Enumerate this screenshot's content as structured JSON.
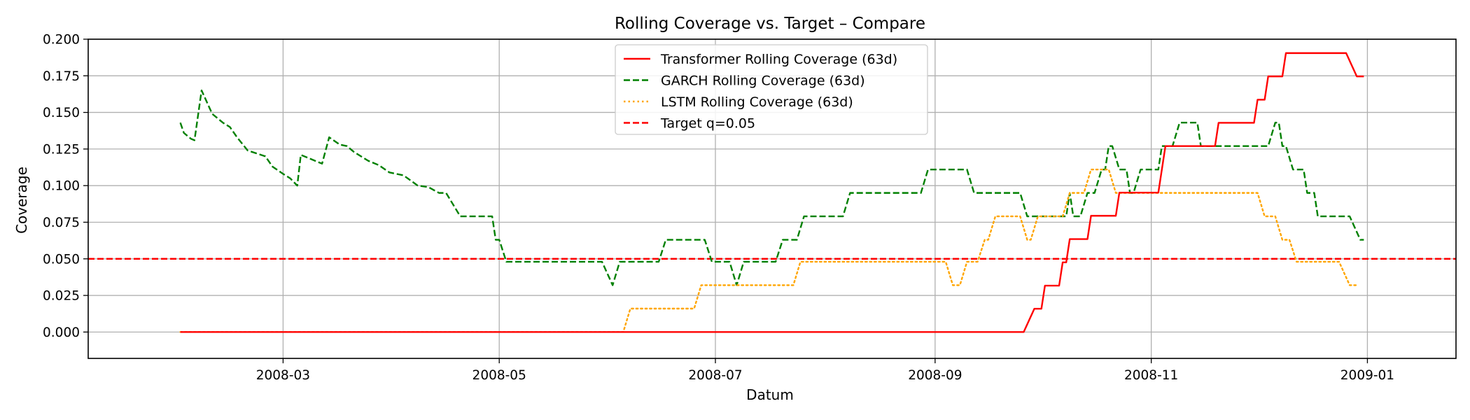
{
  "chart_data": {
    "type": "line",
    "title": "Rolling Coverage vs. Target – Compare",
    "xlabel": "Datum",
    "ylabel": "Coverage",
    "x_range": [
      "2008-01-06",
      "2009-01-26"
    ],
    "ylim": [
      -0.018,
      0.2
    ],
    "x_ticks": [
      "2008-03",
      "2008-05",
      "2008-07",
      "2008-09",
      "2008-11",
      "2009-01"
    ],
    "y_ticks": [
      "0.000",
      "0.025",
      "0.050",
      "0.075",
      "0.100",
      "0.125",
      "0.150",
      "0.175",
      "0.200"
    ],
    "grid": true,
    "legend_position": "top-center",
    "series": [
      {
        "name": "Transformer Rolling Coverage (63d)",
        "color": "#ff0000",
        "style": "solid",
        "points": [
          [
            "2008-02-01",
            0.0
          ],
          [
            "2008-09-26",
            0.0
          ],
          [
            "2008-09-29",
            0.0159
          ],
          [
            "2008-10-01",
            0.0159
          ],
          [
            "2008-10-02",
            0.0317
          ],
          [
            "2008-10-06",
            0.0317
          ],
          [
            "2008-10-07",
            0.0476
          ],
          [
            "2008-10-08",
            0.0476
          ],
          [
            "2008-10-09",
            0.0635
          ],
          [
            "2008-10-14",
            0.0635
          ],
          [
            "2008-10-15",
            0.0794
          ],
          [
            "2008-10-22",
            0.0794
          ],
          [
            "2008-10-23",
            0.0952
          ],
          [
            "2008-11-03",
            0.0952
          ],
          [
            "2008-11-05",
            0.127
          ],
          [
            "2008-11-19",
            0.127
          ],
          [
            "2008-11-20",
            0.1429
          ],
          [
            "2008-11-30",
            0.1429
          ],
          [
            "2008-12-01",
            0.1587
          ],
          [
            "2008-12-03",
            0.1587
          ],
          [
            "2008-12-04",
            0.1746
          ],
          [
            "2008-12-08",
            0.1746
          ],
          [
            "2008-12-09",
            0.1905
          ],
          [
            "2008-12-26",
            0.1905
          ],
          [
            "2008-12-29",
            0.1746
          ],
          [
            "2008-12-31",
            0.1746
          ]
        ]
      },
      {
        "name": "GARCH Rolling Coverage (63d)",
        "color": "#008000",
        "style": "dashed",
        "points": [
          [
            "2008-02-01",
            0.143
          ],
          [
            "2008-02-02",
            0.136
          ],
          [
            "2008-02-04",
            0.132
          ],
          [
            "2008-02-05",
            0.131
          ],
          [
            "2008-02-07",
            0.165
          ],
          [
            "2008-02-10",
            0.149
          ],
          [
            "2008-02-13",
            0.143
          ],
          [
            "2008-02-15",
            0.14
          ],
          [
            "2008-02-17",
            0.133
          ],
          [
            "2008-02-20",
            0.124
          ],
          [
            "2008-02-25",
            0.12
          ],
          [
            "2008-02-27",
            0.113
          ],
          [
            "2008-03-01",
            0.108
          ],
          [
            "2008-03-03",
            0.105
          ],
          [
            "2008-03-05",
            0.1
          ],
          [
            "2008-03-06",
            0.121
          ],
          [
            "2008-03-08",
            0.119
          ],
          [
            "2008-03-11",
            0.116
          ],
          [
            "2008-03-12",
            0.115
          ],
          [
            "2008-03-14",
            0.133
          ],
          [
            "2008-03-17",
            0.128
          ],
          [
            "2008-03-19",
            0.127
          ],
          [
            "2008-03-21",
            0.123
          ],
          [
            "2008-03-25",
            0.117
          ],
          [
            "2008-03-28",
            0.114
          ],
          [
            "2008-03-31",
            0.109
          ],
          [
            "2008-04-04",
            0.107
          ],
          [
            "2008-04-08",
            0.1
          ],
          [
            "2008-04-11",
            0.099
          ],
          [
            "2008-04-14",
            0.095
          ],
          [
            "2008-04-16",
            0.095
          ],
          [
            "2008-04-20",
            0.079
          ],
          [
            "2008-04-29",
            0.079
          ],
          [
            "2008-04-30",
            0.063
          ],
          [
            "2008-05-01",
            0.063
          ],
          [
            "2008-05-03",
            0.048
          ],
          [
            "2008-05-06",
            0.048
          ],
          [
            "2008-05-30",
            0.048
          ],
          [
            "2008-06-02",
            0.032
          ],
          [
            "2008-06-04",
            0.048
          ],
          [
            "2008-06-15",
            0.048
          ],
          [
            "2008-06-17",
            0.063
          ],
          [
            "2008-06-28",
            0.063
          ],
          [
            "2008-06-30",
            0.048
          ],
          [
            "2008-07-05",
            0.048
          ],
          [
            "2008-07-07",
            0.032
          ],
          [
            "2008-07-09",
            0.048
          ],
          [
            "2008-07-18",
            0.048
          ],
          [
            "2008-07-20",
            0.063
          ],
          [
            "2008-07-24",
            0.063
          ],
          [
            "2008-07-26",
            0.079
          ],
          [
            "2008-08-06",
            0.079
          ],
          [
            "2008-08-08",
            0.095
          ],
          [
            "2008-08-28",
            0.095
          ],
          [
            "2008-08-30",
            0.111
          ],
          [
            "2008-09-10",
            0.111
          ],
          [
            "2008-09-12",
            0.095
          ],
          [
            "2008-09-25",
            0.095
          ],
          [
            "2008-09-27",
            0.079
          ],
          [
            "2008-10-08",
            0.079
          ],
          [
            "2008-10-09",
            0.095
          ],
          [
            "2008-10-10",
            0.079
          ],
          [
            "2008-10-12",
            0.079
          ],
          [
            "2008-10-14",
            0.095
          ],
          [
            "2008-10-16",
            0.095
          ],
          [
            "2008-10-18",
            0.111
          ],
          [
            "2008-10-19",
            0.111
          ],
          [
            "2008-10-20",
            0.127
          ],
          [
            "2008-10-21",
            0.127
          ],
          [
            "2008-10-23",
            0.111
          ],
          [
            "2008-10-25",
            0.111
          ],
          [
            "2008-10-26",
            0.095
          ],
          [
            "2008-10-27",
            0.095
          ],
          [
            "2008-10-29",
            0.111
          ],
          [
            "2008-11-03",
            0.111
          ],
          [
            "2008-11-04",
            0.127
          ],
          [
            "2008-11-07",
            0.127
          ],
          [
            "2008-11-09",
            0.143
          ],
          [
            "2008-11-14",
            0.143
          ],
          [
            "2008-11-15",
            0.127
          ],
          [
            "2008-12-04",
            0.127
          ],
          [
            "2008-12-06",
            0.143
          ],
          [
            "2008-12-07",
            0.143
          ],
          [
            "2008-12-08",
            0.127
          ],
          [
            "2008-12-09",
            0.127
          ],
          [
            "2008-12-11",
            0.111
          ],
          [
            "2008-12-14",
            0.111
          ],
          [
            "2008-12-15",
            0.095
          ],
          [
            "2008-12-17",
            0.095
          ],
          [
            "2008-12-18",
            0.079
          ],
          [
            "2008-12-27",
            0.079
          ],
          [
            "2008-12-30",
            0.063
          ],
          [
            "2008-12-31",
            0.063
          ]
        ]
      },
      {
        "name": "LSTM Rolling Coverage (63d)",
        "color": "#ffa500",
        "style": "dotted",
        "points": [
          [
            "2008-02-01",
            0.0
          ],
          [
            "2008-06-05",
            0.0
          ],
          [
            "2008-06-07",
            0.016
          ],
          [
            "2008-06-25",
            0.016
          ],
          [
            "2008-06-27",
            0.032
          ],
          [
            "2008-07-23",
            0.032
          ],
          [
            "2008-07-25",
            0.048
          ],
          [
            "2008-09-04",
            0.048
          ],
          [
            "2008-09-06",
            0.032
          ],
          [
            "2008-09-08",
            0.032
          ],
          [
            "2008-09-10",
            0.048
          ],
          [
            "2008-09-13",
            0.048
          ],
          [
            "2008-09-15",
            0.063
          ],
          [
            "2008-09-16",
            0.063
          ],
          [
            "2008-09-18",
            0.079
          ],
          [
            "2008-09-25",
            0.079
          ],
          [
            "2008-09-27",
            0.063
          ],
          [
            "2008-09-28",
            0.063
          ],
          [
            "2008-09-30",
            0.079
          ],
          [
            "2008-10-07",
            0.079
          ],
          [
            "2008-10-09",
            0.095
          ],
          [
            "2008-10-13",
            0.095
          ],
          [
            "2008-10-15",
            0.111
          ],
          [
            "2008-10-20",
            0.111
          ],
          [
            "2008-10-22",
            0.095
          ],
          [
            "2008-12-01",
            0.095
          ],
          [
            "2008-12-03",
            0.079
          ],
          [
            "2008-12-06",
            0.079
          ],
          [
            "2008-12-08",
            0.063
          ],
          [
            "2008-12-10",
            0.063
          ],
          [
            "2008-12-12",
            0.048
          ],
          [
            "2008-12-24",
            0.048
          ],
          [
            "2008-12-27",
            0.032
          ],
          [
            "2008-12-29",
            0.032
          ]
        ]
      },
      {
        "name": "Target q=0.05",
        "color": "#ff0000",
        "style": "dashed",
        "constant": 0.05
      }
    ]
  }
}
